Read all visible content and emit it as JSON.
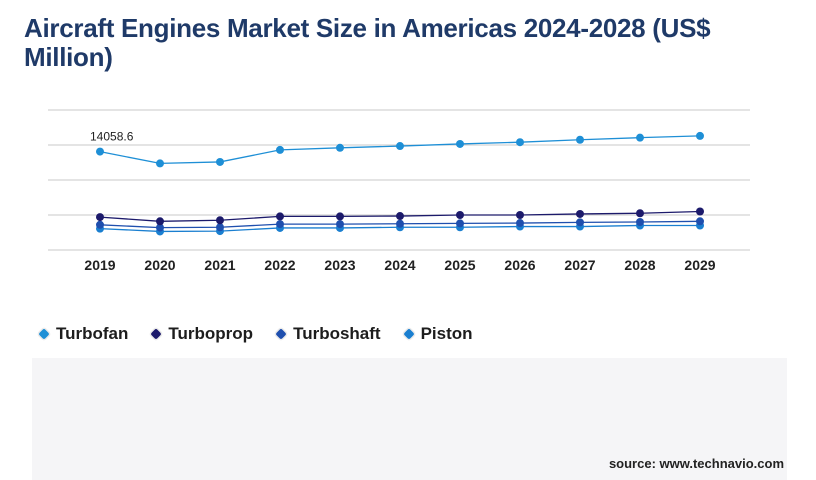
{
  "title": "Aircraft Engines Market Size in Americas 2024-2028 (US$ Million)",
  "source": "source: www.technavio.com",
  "colors": {
    "turbofan": "#1e8fd6",
    "turboprop": "#1c1a6b",
    "turboshaft": "#1f4fae",
    "piston": "#1a7fd0",
    "gridline": "#c8c8c8",
    "title": "#1f3a68"
  },
  "legend": [
    {
      "label": "Turbofan",
      "color": "#1e8fd6"
    },
    {
      "label": "Turboprop",
      "color": "#1c1a6b"
    },
    {
      "label": "Turboshaft",
      "color": "#1f4fae"
    },
    {
      "label": "Piston",
      "color": "#1a7fd0"
    }
  ],
  "chart_data": {
    "type": "line",
    "title": "Aircraft Engines Market Size in Americas 2024-2028 (US$ Million)",
    "categories": [
      "2019",
      "2020",
      "2021",
      "2022",
      "2023",
      "2024",
      "2025",
      "2026",
      "2027",
      "2028",
      "2029"
    ],
    "ylim": [
      0,
      20000
    ],
    "grid": true,
    "legend_position": "bottom-left",
    "annotations": [
      {
        "category": "2019",
        "series": "Turbofan",
        "text": "14058.6"
      }
    ],
    "series": [
      {
        "name": "Turbofan",
        "color": "#1e8fd6",
        "values": [
          14058.6,
          12370,
          12580,
          14300,
          14600,
          14850,
          15150,
          15400,
          15750,
          16050,
          16300
        ]
      },
      {
        "name": "Turboprop",
        "color": "#1c1a6b",
        "values": [
          4700,
          4100,
          4250,
          4800,
          4800,
          4850,
          5000,
          5000,
          5150,
          5250,
          5500
        ]
      },
      {
        "name": "Turboshaft",
        "color": "#1f4fae",
        "values": [
          3600,
          3200,
          3250,
          3700,
          3700,
          3750,
          3800,
          3850,
          3950,
          4000,
          4100
        ]
      },
      {
        "name": "Piston",
        "color": "#1a7fd0",
        "values": [
          3050,
          2650,
          2700,
          3150,
          3150,
          3250,
          3250,
          3350,
          3350,
          3500,
          3500
        ]
      }
    ]
  }
}
